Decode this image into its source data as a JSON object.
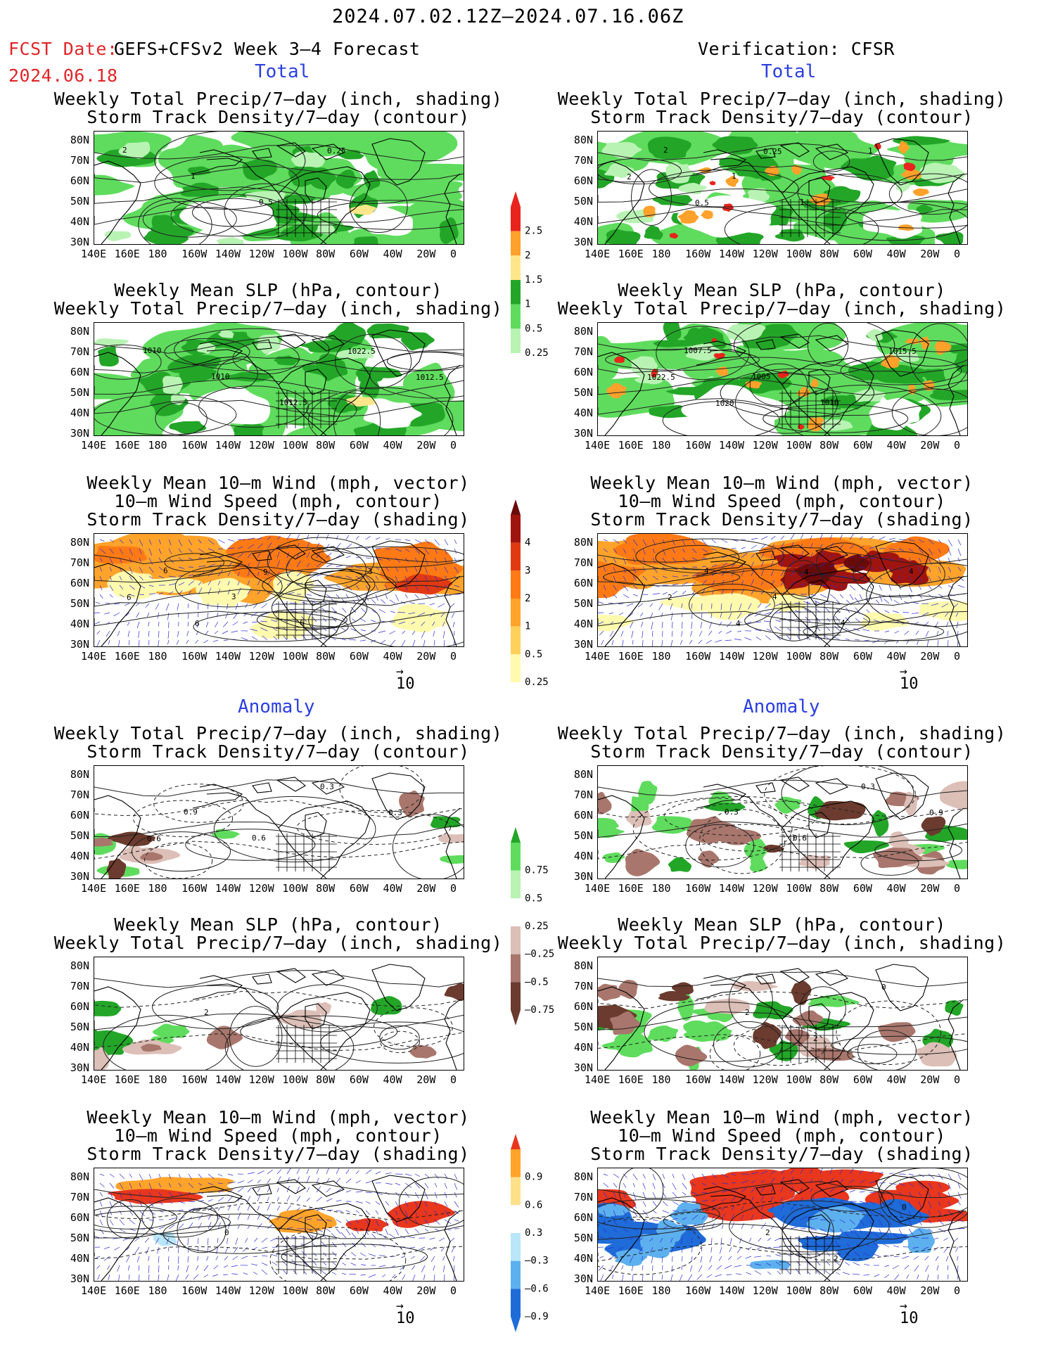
{
  "header": {
    "title": "2024.07.02.12Z—2024.07.16.06Z",
    "fcst_label": "FCST Date:",
    "fcst_date": "2024.06.18",
    "left_model": "GEFS+CFSv2 Week 3—4 Forecast",
    "right_model": "Verification: CFSR"
  },
  "sections": {
    "total": "Total",
    "anomaly": "Anomaly"
  },
  "panel_titles": {
    "precip_storm": [
      "Weekly Total Precip/7—day (inch, shading)",
      "Storm Track Density/7—day (contour)"
    ],
    "slp_precip": [
      "Weekly Mean SLP (hPa, contour)",
      "Weekly Total Precip/7—day (inch, shading)"
    ],
    "wind_storm": [
      "Weekly Mean 10—m Wind (mph, vector)",
      "10—m Wind Speed (mph, contour)",
      "Storm Track Density/7—day (shading)"
    ]
  },
  "axes": {
    "lat_labels": [
      "80N",
      "70N",
      "60N",
      "50N",
      "40N",
      "30N"
    ],
    "lon_labels": [
      "140E",
      "160E",
      "180",
      "160W",
      "140W",
      "120W",
      "100W",
      "80W",
      "60W",
      "40W",
      "20W",
      "0"
    ]
  },
  "vector_reference": "10",
  "colorbars": {
    "precip_total": [
      "2.5",
      "2",
      "1.5",
      "1",
      "0.5",
      "0.25"
    ],
    "storm_total": [
      "4",
      "3",
      "2",
      "1",
      "0.5",
      "0.25"
    ],
    "precip_anom": [
      "0.75",
      "0.5",
      "0.25",
      "—0.25",
      "—0.5",
      "—0.75"
    ],
    "storm_anom": [
      "0.9",
      "0.6",
      "0.3",
      "—0.3",
      "—0.6",
      "—0.9"
    ]
  },
  "contour_labels": {
    "p1_left": [
      "2",
      "1",
      "0.5",
      "0.25"
    ],
    "p1_right": [
      "2",
      "1",
      "1",
      "1",
      "2",
      "0.5",
      "0.25"
    ],
    "p2_left": [
      "1010",
      "1010",
      "1012.5",
      "1022.5",
      "1012.5"
    ],
    "p2_right": [
      "1007.5",
      "1005",
      "1010",
      "1015.5",
      "1022.5",
      "1020"
    ],
    "p3_left": [
      "6",
      "3",
      "6",
      "3",
      "6",
      "6",
      "9"
    ],
    "p3_right": [
      "4",
      "4",
      "4",
      "4",
      "2",
      "4",
      "4"
    ],
    "p4_left": [
      "0.9",
      "0.6",
      "0.3",
      "0.3",
      "0.6"
    ],
    "p4_right": [
      "0.3",
      "0.6",
      "0.3",
      "0.9"
    ],
    "p5_left": [
      "2"
    ],
    "p5_right": [
      "2",
      "2",
      "0"
    ],
    "p6_left": [
      "0"
    ],
    "p6_right": [
      "2",
      "2",
      "0"
    ]
  },
  "colors": {
    "precip": [
      "#b9f3b4",
      "#5fdc5d",
      "#23a628",
      "#ffe68a",
      "#ffa12a",
      "#e8241c"
    ],
    "storm_total": [
      "#fffaad",
      "#ffd05a",
      "#ffa32a",
      "#ff7a14",
      "#e13a12",
      "#a0140f",
      "#6b0a0a"
    ],
    "anom_green": [
      "#b9f3b4",
      "#5fdc5d",
      "#23a628"
    ],
    "anom_brown": [
      "#dcbfb7",
      "#a8766c",
      "#6a3b2e"
    ],
    "anom_storm_warm": [
      "#ffe18a",
      "#ffa32a",
      "#e8371d"
    ],
    "anom_storm_cool": [
      "#b9e6f8",
      "#5db0ee",
      "#1f6cd8"
    ],
    "red_text": "#e0262a",
    "blue_text": "#2b3fe0"
  }
}
